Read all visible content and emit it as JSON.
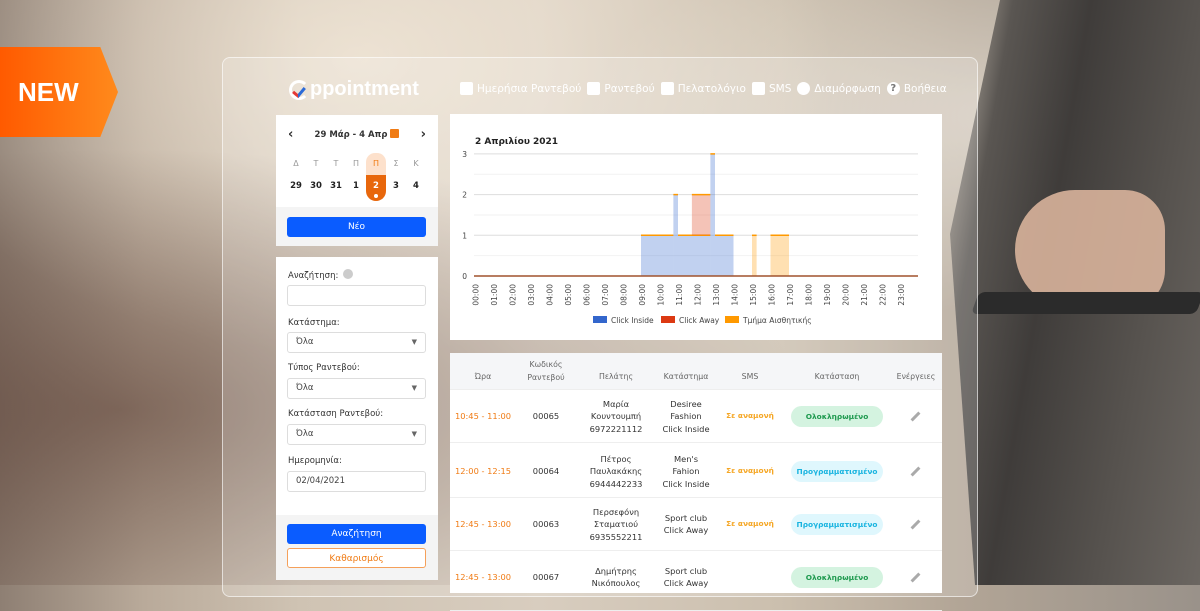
{
  "banner": {
    "badge": "NEW"
  },
  "app": {
    "logo": "ppointment"
  },
  "nav": [
    {
      "label": "Ημερήσια Ραντεβού",
      "icon": "calendar-day-icon"
    },
    {
      "label": "Ραντεβού",
      "icon": "calendar-icon"
    },
    {
      "label": "Πελατολόγιο",
      "icon": "users-icon"
    },
    {
      "label": "SMS",
      "icon": "sms-icon"
    },
    {
      "label": "Διαμόρφωση",
      "icon": "gear-icon"
    },
    {
      "label": "Βοήθεια",
      "icon": "help-icon"
    }
  ],
  "calendar": {
    "range": "29 Μάρ - 4 Απρ",
    "prev": "‹",
    "next": "›",
    "weekdays": [
      "Δ",
      "Τ",
      "Τ",
      "Π",
      "Π",
      "Σ",
      "Κ"
    ],
    "days": [
      "29",
      "30",
      "31",
      "1",
      "2",
      "3",
      "4"
    ],
    "selected_index": 4,
    "new_button": "Νέο"
  },
  "filters": {
    "search_label": "Αναζήτηση:",
    "search_value": "",
    "store_label": "Κατάστημα:",
    "store_value": "Όλα",
    "type_label": "Τύπος Ραντεβού:",
    "type_value": "Όλα",
    "status_label": "Κατάσταση Ραντεβού:",
    "status_value": "Όλα",
    "date_label": "Ημερομηνία:",
    "date_value": "02/04/2021",
    "search_button": "Αναζήτηση",
    "clear_button": "Καθαρισμός"
  },
  "chart_data": {
    "type": "area",
    "title": "2 Απριλίου 2021",
    "stacked": true,
    "stepped": true,
    "x_ticks": [
      "00:00",
      "01:00",
      "02:00",
      "03:00",
      "04:00",
      "05:00",
      "06:00",
      "07:00",
      "08:00",
      "09:00",
      "10:00",
      "11:00",
      "12:00",
      "13:00",
      "14:00",
      "15:00",
      "16:00",
      "17:00",
      "18:00",
      "19:00",
      "20:00",
      "21:00",
      "22:00",
      "23:00"
    ],
    "y_ticks": [
      0,
      1,
      2,
      3
    ],
    "ylim": [
      0,
      3
    ],
    "grid": true,
    "legend": "bottom",
    "series": [
      {
        "name": "Click Inside",
        "color": "#3366cc",
        "segments": [
          {
            "start": "09:00",
            "end": "10:45",
            "value": 1
          },
          {
            "start": "10:45",
            "end": "11:00",
            "value": 2
          },
          {
            "start": "11:00",
            "end": "12:45",
            "value": 1
          },
          {
            "start": "12:45",
            "end": "13:00",
            "value": 3
          },
          {
            "start": "13:00",
            "end": "14:00",
            "value": 1
          }
        ]
      },
      {
        "name": "Click Away",
        "color": "#dc3912",
        "segments": [
          {
            "start": "11:45",
            "end": "12:45",
            "value": 1
          }
        ]
      },
      {
        "name": "Τμήμα Αισθητικής",
        "color": "#ff9900",
        "segments": [
          {
            "start": "15:00",
            "end": "15:15",
            "value": 1
          },
          {
            "start": "16:00",
            "end": "17:00",
            "value": 1
          }
        ]
      }
    ]
  },
  "table": {
    "headers": [
      "Ώρα",
      "Κωδικός\nΡαντεβού",
      "Πελάτης",
      "Κατάστημα",
      "SMS",
      "Κατάσταση",
      "Ενέργειες"
    ],
    "rows": [
      {
        "time": "10:45 - 11:00",
        "code": "00065",
        "client": [
          "Μαρία",
          "Κουντουμπή",
          "6972221112"
        ],
        "store": [
          "Desiree",
          "Fashion",
          "Click Inside"
        ],
        "sms": "Σε αναμονή",
        "status": "Ολοκληρωμένο",
        "status_kind": "done"
      },
      {
        "time": "12:00 - 12:15",
        "code": "00064",
        "client": [
          "Πέτρος",
          "Παυλακάκης",
          "6944442233"
        ],
        "store": [
          "Men's",
          "Fahion",
          "Click Inside"
        ],
        "sms": "Σε αναμονή",
        "status": "Προγραμματισμένο",
        "status_kind": "scheduled"
      },
      {
        "time": "12:45 - 13:00",
        "code": "00063",
        "client": [
          "Περσεφόνη",
          "Σταματιού",
          "6935552211"
        ],
        "store": [
          "Sport club",
          "Click Away"
        ],
        "sms": "Σε αναμονή",
        "status": "Προγραμματισμένο",
        "status_kind": "scheduled"
      },
      {
        "time": "12:45 - 13:00",
        "code": "00067",
        "client": [
          "Δημήτρης",
          "Νικόπουλος"
        ],
        "store": [
          "Sport club",
          "Click Away"
        ],
        "sms": "",
        "status": "Ολοκληρωμένο",
        "status_kind": "done"
      }
    ]
  },
  "colors": {
    "accent": "#f07b14",
    "primary": "#0a5cff",
    "done_bg": "#d4f3e0",
    "done_fg": "#1f9a4f",
    "sched_bg": "#dff7fd",
    "sched_fg": "#19b4e0"
  }
}
